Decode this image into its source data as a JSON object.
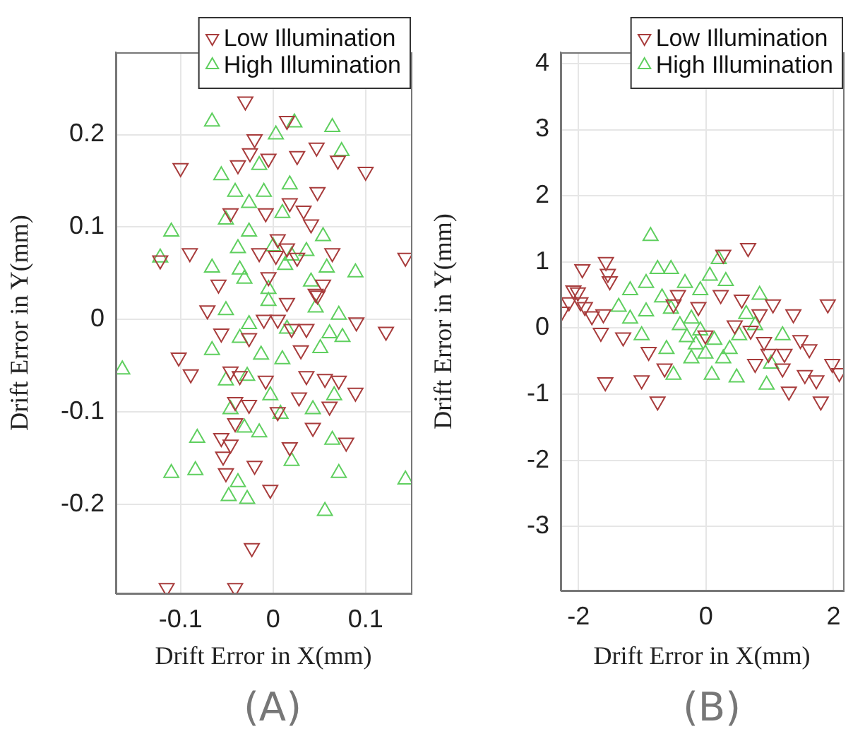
{
  "chart_data": [
    {
      "type": "scatter",
      "xlabel": "Drift Error in X(mm)",
      "ylabel": "Drift Error in Y(mm)",
      "xlim": [
        -0.17,
        0.149
      ],
      "ylim": [
        -0.296,
        0.289
      ],
      "xticks": [
        {
          "value": -0.1,
          "label": "-0.1"
        },
        {
          "value": 0,
          "label": "0"
        },
        {
          "value": 0.1,
          "label": "0.1"
        }
      ],
      "yticks": [
        {
          "value": -0.2,
          "label": "-0.2"
        },
        {
          "value": -0.1,
          "label": "-0.1"
        },
        {
          "value": 0,
          "label": "0"
        },
        {
          "value": 0.1,
          "label": "0.1"
        },
        {
          "value": 0.2,
          "label": "0.2"
        }
      ],
      "grid": true,
      "legend": "top right",
      "annotations": [
        "(A)"
      ],
      "series": [
        {
          "name": "Low Illumination",
          "color": "#a83c3c",
          "marker": "triangle-down",
          "x": [
            -0.03,
            -0.1,
            0.015,
            -0.02,
            -0.025,
            -0.038,
            -0.005,
            0.026,
            0.047,
            0.07,
            0.1,
            0.048,
            0.018,
            0.033,
            -0.008,
            -0.046,
            0.041,
            0.005,
            -0.09,
            -0.122,
            0.143,
            -0.015,
            0.003,
            0.026,
            0.064,
            -0.059,
            -0.005,
            0.046,
            0.054,
            0.015,
            -0.071,
            0.015,
            0.048,
            -0.01,
            0.005,
            -0.056,
            -0.026,
            0.02,
            0.036,
            0.09,
            0.122,
            -0.102,
            -0.089,
            -0.046,
            -0.036,
            -0.008,
            0.03,
            0.036,
            0.056,
            0.071,
            0.089,
            -0.041,
            -0.026,
            0.028,
            0.061,
            0.005,
            -0.041,
            0.043,
            -0.056,
            -0.046,
            0.018,
            0.079,
            -0.054,
            -0.02,
            -0.051,
            -0.003,
            -0.023,
            -0.115,
            -0.041
          ],
          "values": [
            0.236,
            0.164,
            0.215,
            0.195,
            0.18,
            0.167,
            0.174,
            0.177,
            0.186,
            0.172,
            0.16,
            0.138,
            0.126,
            0.118,
            0.115,
            0.115,
            0.103,
            0.087,
            0.072,
            0.064,
            0.067,
            0.072,
            0.069,
            0.067,
            0.072,
            0.038,
            0.046,
            0.028,
            0.038,
            0.077,
            0.01,
            0.018,
            0.026,
            0,
            0,
            -0.015,
            -0.02,
            -0.01,
            -0.01,
            -0.003,
            -0.013,
            -0.041,
            -0.059,
            -0.056,
            -0.061,
            -0.066,
            -0.033,
            -0.061,
            -0.064,
            -0.066,
            -0.079,
            -0.089,
            -0.092,
            -0.084,
            -0.094,
            -0.1,
            -0.112,
            -0.117,
            -0.128,
            -0.135,
            -0.138,
            -0.133,
            -0.148,
            -0.158,
            -0.166,
            -0.184,
            -0.247,
            -0.29,
            -0.29
          ]
        },
        {
          "name": "High Illumination",
          "color": "#5fcf5f",
          "marker": "triangle",
          "x": [
            -0.066,
            0.003,
            0.023,
            0.064,
            0.074,
            -0.056,
            -0.015,
            -0.041,
            -0.01,
            0.018,
            -0.026,
            0.01,
            -0.051,
            -0.11,
            -0.026,
            0.054,
            -0.038,
            0,
            -0.122,
            -0.066,
            -0.036,
            0.013,
            0.036,
            0.058,
            0.089,
            -0.031,
            -0.005,
            0.041,
            0.02,
            -0.051,
            -0.005,
            0.046,
            0.071,
            -0.026,
            -0.066,
            -0.036,
            0.015,
            0.061,
            0.075,
            0.051,
            -0.163,
            -0.013,
            0.01,
            -0.051,
            -0.028,
            -0.003,
            0.066,
            -0.046,
            0.008,
            0.043,
            -0.082,
            -0.031,
            -0.015,
            0.064,
            0.02,
            -0.11,
            -0.084,
            0.071,
            0.143,
            -0.038,
            -0.048,
            -0.028,
            0.056
          ],
          "values": [
            0.214,
            0.2,
            0.213,
            0.208,
            0.182,
            0.156,
            0.167,
            0.138,
            0.138,
            0.146,
            0.126,
            0.115,
            0.108,
            0.095,
            0.095,
            0.09,
            0.077,
            0.079,
            0.067,
            0.056,
            0.054,
            0.059,
            0.074,
            0.056,
            0.051,
            0.044,
            0.033,
            0.041,
            0.069,
            0.01,
            0.02,
            0.013,
            0.005,
            -0.005,
            -0.033,
            -0.02,
            -0.01,
            -0.015,
            -0.019,
            -0.031,
            -0.054,
            -0.038,
            -0.043,
            -0.066,
            -0.061,
            -0.082,
            -0.082,
            -0.097,
            -0.102,
            -0.097,
            -0.128,
            -0.117,
            -0.122,
            -0.13,
            -0.153,
            -0.166,
            -0.163,
            -0.166,
            -0.173,
            -0.176,
            -0.191,
            -0.194,
            -0.207
          ]
        }
      ]
    },
    {
      "type": "scatter",
      "xlabel": "Drift Error in X(mm)",
      "ylabel": "Drift Error in Y(mm)",
      "xlim": [
        -2.28,
        2.15
      ],
      "ylim": [
        -3.97,
        4.17
      ],
      "xticks": [
        {
          "value": -2,
          "label": "-2"
        },
        {
          "value": 0,
          "label": "0"
        },
        {
          "value": 2,
          "label": "2"
        }
      ],
      "yticks": [
        {
          "value": -3,
          "label": "-3"
        },
        {
          "value": -2,
          "label": "-2"
        },
        {
          "value": -1,
          "label": "-1"
        },
        {
          "value": 0,
          "label": "0"
        },
        {
          "value": 1,
          "label": "1"
        },
        {
          "value": 2,
          "label": "2"
        },
        {
          "value": 3,
          "label": "3"
        },
        {
          "value": 4,
          "label": "4"
        }
      ],
      "grid": true,
      "legend": "top right",
      "annotations": [
        "(B)"
      ],
      "series": [
        {
          "name": "Low Illumination",
          "color": "#a83c3c",
          "marker": "triangle-down",
          "x": [
            -2.26,
            -2.15,
            -2.01,
            -1.94,
            -1.97,
            -2.08,
            -1.9,
            -1.79,
            -1.61,
            -1.57,
            -1.54,
            -1.51,
            -1.65,
            -1.3,
            -1.58,
            -1.01,
            -0.9,
            -0.76,
            -0.65,
            -0.44,
            -0.51,
            -0.12,
            -0.01,
            0.27,
            0.66,
            0.23,
            0.56,
            0.45,
            0.84,
            1.05,
            1.37,
            0.91,
            0.77,
            1.23,
            1.48,
            1.62,
            1.91,
            1.3,
            1.55,
            1.73,
            1.8,
            1.98,
            2.09,
            1.2,
            0.98,
            0.7
          ],
          "values": [
            0.25,
            0.39,
            0.54,
            0.89,
            0.39,
            0.57,
            0.32,
            0.18,
            0.21,
            1.0,
            0.82,
            0.71,
            -0.07,
            -0.14,
            -0.82,
            -0.79,
            -0.36,
            -1.11,
            -0.61,
            0.5,
            0.36,
            0.32,
            -0.11,
            1.11,
            1.21,
            0.5,
            0.43,
            0.04,
            0.21,
            0.36,
            0.21,
            -0.21,
            -0.54,
            -0.39,
            -0.18,
            -0.32,
            0.36,
            -0.96,
            -0.71,
            -0.79,
            -1.11,
            -0.54,
            -0.68,
            -0.61,
            -0.39,
            -0.04
          ]
        },
        {
          "name": "High Illumination",
          "color": "#5fcf5f",
          "marker": "triangle",
          "x": [
            -0.87,
            -0.76,
            -0.55,
            -1.19,
            -0.94,
            -0.69,
            -0.33,
            0.06,
            0.2,
            0.31,
            -0.09,
            -1.37,
            -1.19,
            -0.94,
            -1.01,
            -0.55,
            -0.41,
            -0.23,
            -0.3,
            -0.16,
            -0.01,
            0.13,
            0.27,
            0.09,
            0.48,
            0.37,
            0.84,
            0.77,
            0.63,
            0.95,
            1.02,
            1.2,
            -0.51,
            -0.62,
            -0.23,
            -0.09,
            0.52
          ],
          "values": [
            1.39,
            0.89,
            0.89,
            0.57,
            0.68,
            0.46,
            0.68,
            0.79,
            1.04,
            0.71,
            0.57,
            0.32,
            0.14,
            0.25,
            -0.11,
            0.29,
            0.04,
            0.14,
            -0.14,
            -0.25,
            -0.39,
            -0.18,
            -0.46,
            -0.71,
            -0.75,
            -0.32,
            0.5,
            0.04,
            0.21,
            -0.86,
            -0.54,
            -0.11,
            -0.71,
            -0.32,
            -0.46,
            -0.04,
            -0.11
          ]
        }
      ]
    }
  ]
}
